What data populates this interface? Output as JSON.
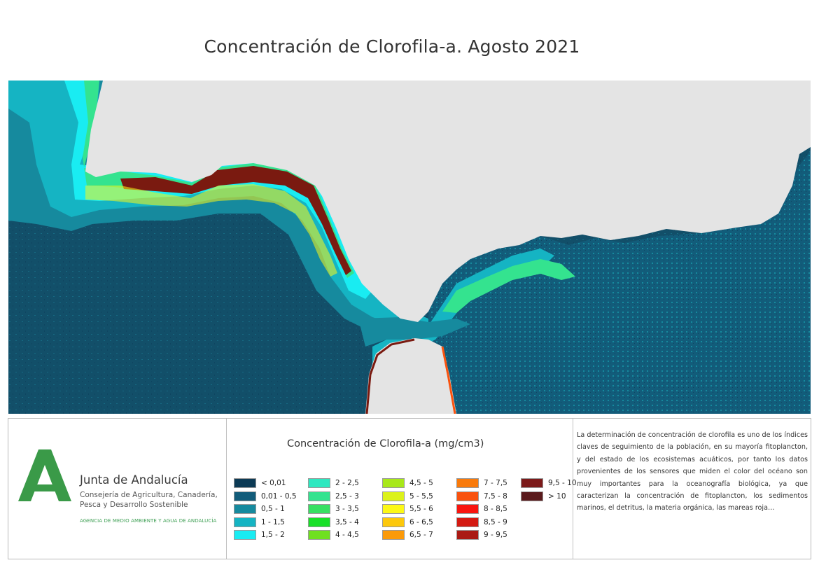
{
  "title": "Concentración de Clorofila-a. Agosto 2021",
  "colors": {
    "land": "#e4e4e4",
    "ocean_deep": "#124f69",
    "ocean_mid": "#1a7f99",
    "ocean_light": "#18a9bd",
    "coast_cyan": "#18e8f0",
    "coast_green": "#39e36a",
    "coast_red": "#7a1a10"
  },
  "map": {
    "image_description_icon": "chlorophyll-map"
  },
  "organization": {
    "name": "Junta de Andalucía",
    "department": "Consejería de Agricultura, Canadería,\nPesca y Desarrollo Sostenible",
    "agency": "AGENCIA DE MEDIO AMBIENTE Y AGUA DE ANDALUCÍA",
    "logo_icon": "junta-andalucia-logo-icon",
    "logo_color": "#3a9a48"
  },
  "legend": {
    "title": "Concentración de Clorofila-a (mg/cm3)",
    "items": [
      {
        "label": "< 0,01",
        "color": "#0c3a55"
      },
      {
        "label": "0,01 - 0,5",
        "color": "#125c7a"
      },
      {
        "label": "0,5 - 1",
        "color": "#168a9e"
      },
      {
        "label": "1 - 1,5",
        "color": "#15b4c3"
      },
      {
        "label": "1,5 - 2",
        "color": "#19ecf2"
      },
      {
        "label": "2 - 2,5",
        "color": "#2de8c0"
      },
      {
        "label": "2,5 - 3",
        "color": "#34e38f"
      },
      {
        "label": "3 - 3,5",
        "color": "#38e063"
      },
      {
        "label": "3,5 - 4",
        "color": "#18e028"
      },
      {
        "label": "4 - 4,5",
        "color": "#6fe020"
      },
      {
        "label": "4,5 - 5",
        "color": "#a8e81a"
      },
      {
        "label": "5 - 5,5",
        "color": "#dcf21a"
      },
      {
        "label": "5,5 - 6",
        "color": "#fcf816"
      },
      {
        "label": "6 - 6,5",
        "color": "#fcc80c"
      },
      {
        "label": "6,5 - 7",
        "color": "#fb9a0a"
      },
      {
        "label": "7 - 7,5",
        "color": "#f97a0b"
      },
      {
        "label": "7,5 - 8",
        "color": "#f9520e"
      },
      {
        "label": "8 - 8,5",
        "color": "#f8150f"
      },
      {
        "label": "8,5 - 9",
        "color": "#d41a12"
      },
      {
        "label": "9 - 9,5",
        "color": "#aa1a14"
      },
      {
        "label": "9,5 - 10",
        "color": "#7c1a1a"
      },
      {
        "label": "> 10",
        "color": "#5a1a1c"
      }
    ]
  },
  "description": "La determinación de concentración de clorofila es uno de los índices claves de seguimiento de la población, en su mayoría fitoplancton, y del estado de los ecosistemas acuáticos, por tanto los datos provenientes de los sensores que miden el color del océano son muy importantes para la oceanografía biológica, ya que caracterizan la concentración de fitoplancton, los sedimentos marinos, el detritus, la materia orgánica, las mareas roja…"
}
